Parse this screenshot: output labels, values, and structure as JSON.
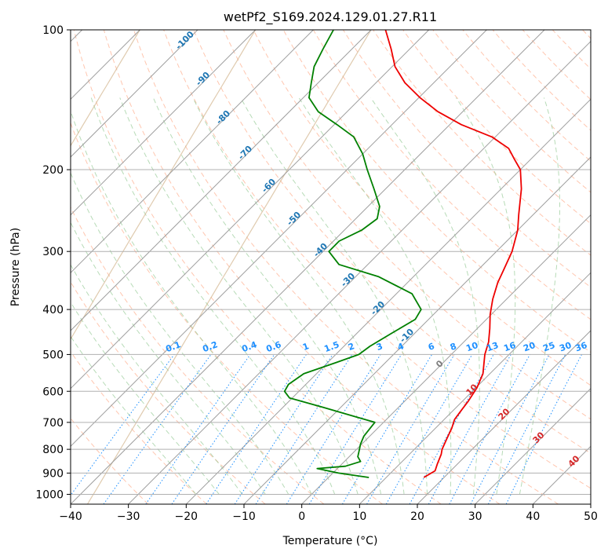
{
  "chart_data": {
    "type": "line",
    "title": "wetPf2_S169.2024.129.01.27.R11",
    "xlabel": "Temperature (°C)",
    "ylabel": "Pressure (hPa)",
    "xlim": [
      -40,
      50
    ],
    "ylim": [
      1050,
      100
    ],
    "y_scale": "log",
    "grid": true,
    "x_ticks": [
      -40,
      -30,
      -20,
      -10,
      0,
      10,
      20,
      30,
      40,
      50
    ],
    "x_tick_labels": [
      "−40",
      "−30",
      "−20",
      "−10",
      "0",
      "10",
      "20",
      "30",
      "40",
      "50"
    ],
    "y_ticks": [
      100,
      200,
      300,
      400,
      500,
      600,
      700,
      800,
      900,
      1000
    ],
    "y_tick_labels": [
      "100",
      "200",
      "300",
      "400",
      "500",
      "600",
      "700",
      "800",
      "900",
      "1000"
    ],
    "series": [
      {
        "color": "#ee0000",
        "points": [
          {
            "p": 920,
            "t": 16.5
          },
          {
            "p": 890,
            "t": 17.3
          },
          {
            "p": 860,
            "t": 16.5
          },
          {
            "p": 820,
            "t": 15.5
          },
          {
            "p": 800,
            "t": 14.8
          },
          {
            "p": 760,
            "t": 13.8
          },
          {
            "p": 720,
            "t": 12.8
          },
          {
            "p": 690,
            "t": 11.8
          },
          {
            "p": 660,
            "t": 11.4
          },
          {
            "p": 630,
            "t": 11.0
          },
          {
            "p": 590,
            "t": 10.2
          },
          {
            "p": 550,
            "t": 8.8
          },
          {
            "p": 500,
            "t": 5.8
          },
          {
            "p": 470,
            "t": 4.3
          },
          {
            "p": 440,
            "t": 2.2
          },
          {
            "p": 410,
            "t": -0.2
          },
          {
            "p": 380,
            "t": -2.4
          },
          {
            "p": 350,
            "t": -4.4
          },
          {
            "p": 330,
            "t": -5.5
          },
          {
            "p": 300,
            "t": -7.3
          },
          {
            "p": 270,
            "t": -10.0
          },
          {
            "p": 250,
            "t": -12.5
          },
          {
            "p": 220,
            "t": -16.5
          },
          {
            "p": 200,
            "t": -20.0
          },
          {
            "p": 190,
            "t": -22.8
          },
          {
            "p": 180,
            "t": -25.7
          },
          {
            "p": 170,
            "t": -30.6
          },
          {
            "p": 160,
            "t": -38.0
          },
          {
            "p": 150,
            "t": -44.3
          },
          {
            "p": 140,
            "t": -49.8
          },
          {
            "p": 130,
            "t": -55.0
          },
          {
            "p": 120,
            "t": -59.5
          },
          {
            "p": 110,
            "t": -63.2
          },
          {
            "p": 100,
            "t": -67.5
          }
        ]
      },
      {
        "color": "#008000",
        "points": [
          {
            "p": 920,
            "t": 7.0
          },
          {
            "p": 900,
            "t": 1.0
          },
          {
            "p": 880,
            "t": -3.5
          },
          {
            "p": 870,
            "t": 1.0
          },
          {
            "p": 850,
            "t": 2.8
          },
          {
            "p": 830,
            "t": 1.5
          },
          {
            "p": 800,
            "t": 0.5
          },
          {
            "p": 780,
            "t": -0.2
          },
          {
            "p": 750,
            "t": -1.0
          },
          {
            "p": 720,
            "t": -1.3
          },
          {
            "p": 700,
            "t": -1.5
          },
          {
            "p": 680,
            "t": -6.0
          },
          {
            "p": 650,
            "t": -13.0
          },
          {
            "p": 620,
            "t": -20.5
          },
          {
            "p": 600,
            "t": -22.5
          },
          {
            "p": 580,
            "t": -23.0
          },
          {
            "p": 550,
            "t": -22.2
          },
          {
            "p": 520,
            "t": -18.5
          },
          {
            "p": 500,
            "t": -16.0
          },
          {
            "p": 480,
            "t": -15.5
          },
          {
            "p": 450,
            "t": -14.0
          },
          {
            "p": 420,
            "t": -12.3
          },
          {
            "p": 400,
            "t": -13.0
          },
          {
            "p": 370,
            "t": -17.3
          },
          {
            "p": 340,
            "t": -26.0
          },
          {
            "p": 320,
            "t": -35.0
          },
          {
            "p": 300,
            "t": -39.0
          },
          {
            "p": 285,
            "t": -39.0
          },
          {
            "p": 270,
            "t": -37.0
          },
          {
            "p": 255,
            "t": -36.3
          },
          {
            "p": 240,
            "t": -38.0
          },
          {
            "p": 220,
            "t": -42.0
          },
          {
            "p": 200,
            "t": -46.5
          },
          {
            "p": 185,
            "t": -50.0
          },
          {
            "p": 170,
            "t": -54.5
          },
          {
            "p": 160,
            "t": -59.5
          },
          {
            "p": 150,
            "t": -65.0
          },
          {
            "p": 140,
            "t": -69.0
          },
          {
            "p": 130,
            "t": -71.2
          },
          {
            "p": 120,
            "t": -73.5
          },
          {
            "p": 110,
            "t": -75.0
          },
          {
            "p": 100,
            "t": -76.5
          }
        ]
      }
    ],
    "isotherm_labels": [
      "-100",
      "-90",
      "-80",
      "-70",
      "-60",
      "-50",
      "-40",
      "-30",
      "-20",
      "-10"
    ],
    "isotherm_label_color": "#1f77b4",
    "mixing_ratio_labels": [
      "0.1",
      "0.2",
      "0.4",
      "0.6",
      "1",
      "1.5",
      "2",
      "3",
      "4",
      "6",
      "8",
      "10",
      "13",
      "16",
      "20",
      "25",
      "30",
      "36"
    ],
    "mixing_ratio_label_color": "#1e90ff",
    "isotherm_warm_labels": [
      "0",
      "10",
      "20",
      "30",
      "40"
    ],
    "isotherm_zero_color": "#7f7f7f",
    "isotherm_warm_color": "#d62728",
    "background_line_colors": {
      "skewed_isotherm": "#9e9e9e",
      "dry_adiabat": "#ffa07a",
      "moist_adiabat": "#90c890",
      "mixing_ratio": "#1e90ff",
      "upper_curve": "#d2b48c",
      "grid": "#b0b0b0"
    }
  }
}
